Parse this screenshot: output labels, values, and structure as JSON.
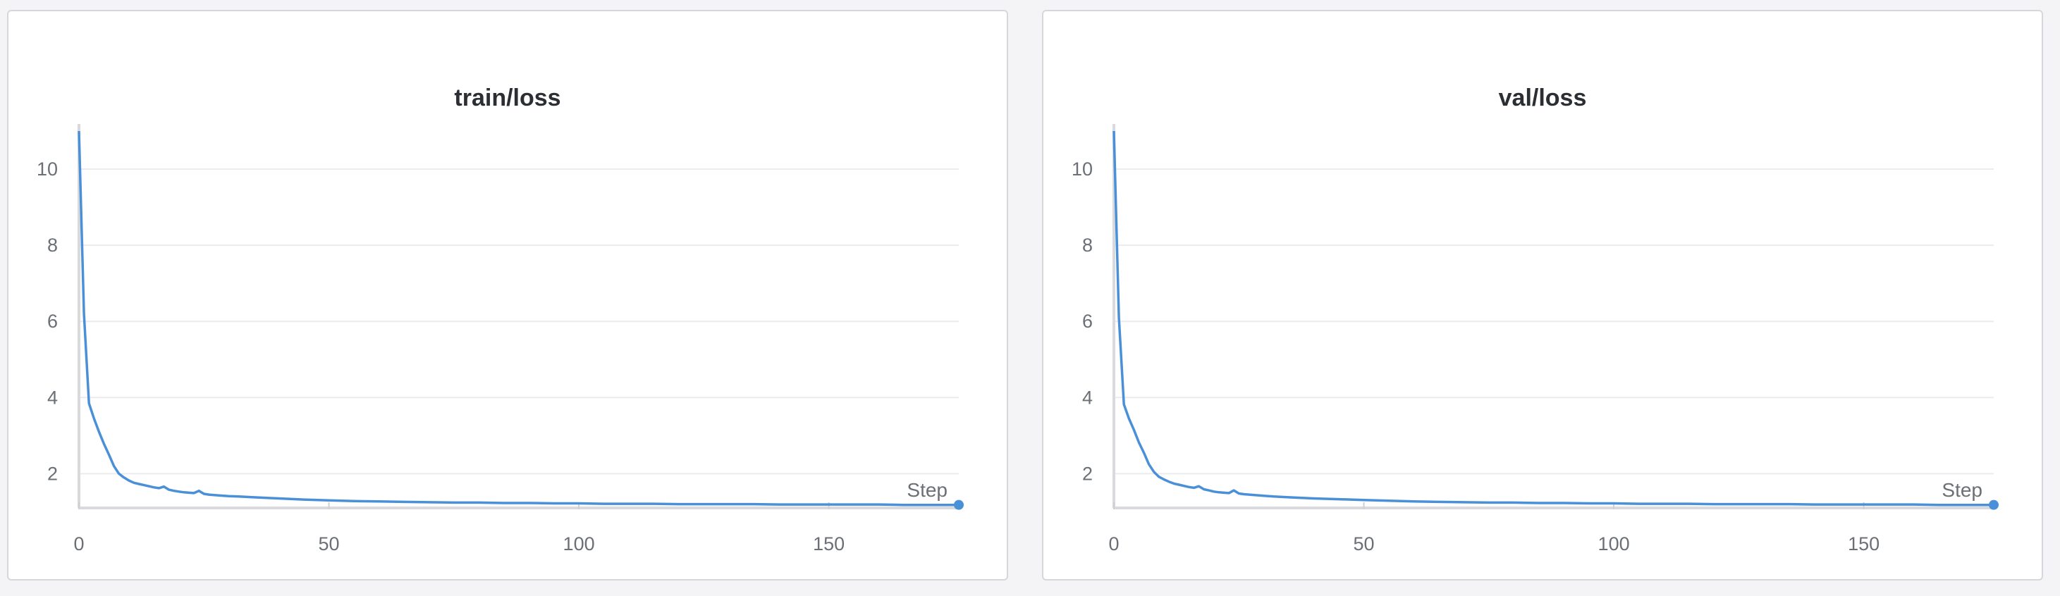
{
  "chart_data": [
    {
      "type": "line",
      "title": "train/loss",
      "xlabel": "Step",
      "ylabel": "",
      "xlim": [
        0,
        176
      ],
      "ylim": [
        1.1,
        11.0
      ],
      "x_ticks": [
        "0",
        "50",
        "100",
        "150"
      ],
      "y_ticks": [
        "2",
        "4",
        "6",
        "8",
        "10"
      ],
      "grid": true,
      "legend": "none",
      "color": "#4a90d9",
      "series": [
        {
          "x": [
            0,
            1,
            2,
            3,
            4,
            5,
            6,
            7,
            8,
            9,
            10,
            11,
            12,
            13,
            14,
            15,
            16,
            17,
            18,
            19,
            20,
            21,
            22,
            23,
            24,
            25,
            26,
            28,
            30,
            32,
            35,
            38,
            40,
            45,
            50,
            55,
            60,
            65,
            70,
            75,
            80,
            85,
            90,
            95,
            100,
            105,
            110,
            115,
            120,
            125,
            130,
            135,
            140,
            145,
            150,
            155,
            160,
            165,
            170,
            176
          ],
          "y": [
            11.0,
            6.2,
            3.85,
            3.45,
            3.1,
            2.78,
            2.5,
            2.2,
            2.0,
            1.9,
            1.82,
            1.76,
            1.73,
            1.7,
            1.67,
            1.64,
            1.62,
            1.66,
            1.58,
            1.55,
            1.53,
            1.51,
            1.5,
            1.49,
            1.55,
            1.47,
            1.45,
            1.43,
            1.41,
            1.4,
            1.38,
            1.36,
            1.35,
            1.32,
            1.3,
            1.28,
            1.27,
            1.26,
            1.25,
            1.24,
            1.24,
            1.23,
            1.23,
            1.22,
            1.22,
            1.21,
            1.21,
            1.21,
            1.2,
            1.2,
            1.2,
            1.2,
            1.19,
            1.19,
            1.19,
            1.19,
            1.19,
            1.18,
            1.18,
            1.18
          ]
        }
      ]
    },
    {
      "type": "line",
      "title": "val/loss",
      "xlabel": "Step",
      "ylabel": "",
      "xlim": [
        0,
        176
      ],
      "ylim": [
        1.1,
        11.0
      ],
      "x_ticks": [
        "0",
        "50",
        "100",
        "150"
      ],
      "y_ticks": [
        "2",
        "4",
        "6",
        "8",
        "10"
      ],
      "grid": true,
      "legend": "none",
      "color": "#4a90d9",
      "series": [
        {
          "x": [
            0,
            1,
            2,
            3,
            4,
            5,
            6,
            7,
            8,
            9,
            10,
            11,
            12,
            13,
            14,
            15,
            16,
            17,
            18,
            19,
            20,
            21,
            22,
            23,
            24,
            25,
            26,
            28,
            30,
            32,
            35,
            38,
            40,
            45,
            50,
            55,
            60,
            65,
            70,
            75,
            80,
            85,
            90,
            95,
            100,
            105,
            110,
            115,
            120,
            125,
            130,
            135,
            140,
            145,
            150,
            155,
            160,
            165,
            170,
            176
          ],
          "y": [
            11.0,
            6.1,
            3.82,
            3.45,
            3.15,
            2.82,
            2.55,
            2.25,
            2.05,
            1.92,
            1.85,
            1.79,
            1.74,
            1.71,
            1.68,
            1.65,
            1.63,
            1.67,
            1.59,
            1.56,
            1.53,
            1.51,
            1.5,
            1.49,
            1.56,
            1.48,
            1.46,
            1.44,
            1.42,
            1.4,
            1.38,
            1.36,
            1.35,
            1.33,
            1.31,
            1.29,
            1.27,
            1.26,
            1.25,
            1.24,
            1.24,
            1.23,
            1.23,
            1.22,
            1.22,
            1.21,
            1.21,
            1.21,
            1.2,
            1.2,
            1.2,
            1.2,
            1.19,
            1.19,
            1.19,
            1.19,
            1.19,
            1.18,
            1.18,
            1.18
          ]
        }
      ]
    }
  ]
}
